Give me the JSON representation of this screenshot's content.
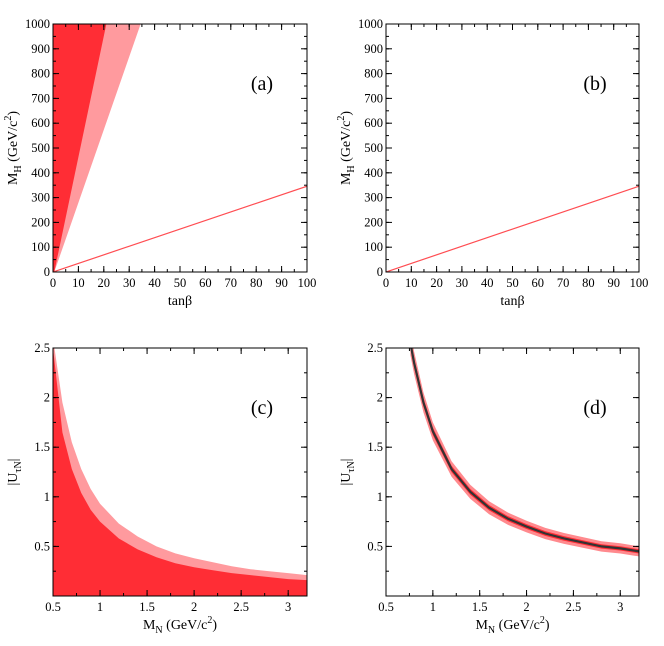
{
  "chart_data": [
    {
      "panel": "(a)",
      "type": "area",
      "xlabel": "tanβ",
      "ylabel": {
        "main": "M",
        "sub": "H",
        "unit_pre": " (GeV/c",
        "unit_sup": "2",
        "unit_post": ")"
      },
      "xlim": [
        0,
        100
      ],
      "ylim": [
        0,
        1000
      ],
      "xticks": [
        0,
        10,
        20,
        30,
        40,
        50,
        60,
        70,
        80,
        90,
        100
      ],
      "yticks": [
        0,
        100,
        200,
        300,
        400,
        500,
        600,
        700,
        800,
        900,
        1000
      ],
      "regions": [
        {
          "color": "#ff9a9e",
          "points": [
            [
              0,
              0
            ],
            [
              0,
              1000
            ],
            [
              34.5,
              1000
            ],
            [
              0.5,
              0
            ]
          ]
        },
        {
          "color": "#ff2d35",
          "points": [
            [
              0,
              0
            ],
            [
              0,
              1000
            ],
            [
              21,
              1000
            ],
            [
              0.5,
              0
            ]
          ]
        }
      ],
      "line": {
        "color": "#ff4d52",
        "points": [
          [
            0,
            0
          ],
          [
            100,
            346
          ]
        ]
      }
    },
    {
      "panel": "(b)",
      "type": "line",
      "xlabel": "tanβ",
      "ylabel": {
        "main": "M",
        "sub": "H",
        "unit_pre": " (GeV/c",
        "unit_sup": "2",
        "unit_post": ")"
      },
      "xlim": [
        0,
        100
      ],
      "ylim": [
        0,
        1000
      ],
      "xticks": [
        0,
        10,
        20,
        30,
        40,
        50,
        60,
        70,
        80,
        90,
        100
      ],
      "yticks": [
        0,
        100,
        200,
        300,
        400,
        500,
        600,
        700,
        800,
        900,
        1000
      ],
      "regions": [],
      "line": {
        "color": "#ff4d52",
        "points": [
          [
            0,
            0
          ],
          [
            100,
            346
          ]
        ]
      }
    },
    {
      "panel": "(c)",
      "type": "area",
      "xlabel": {
        "main": "M",
        "sub": "N",
        "unit_pre": " (GeV/c",
        "unit_sup": "2",
        "unit_post": ")"
      },
      "ylabel": {
        "main": "|U",
        "sub": "τN",
        "unit_pre": "|",
        "unit_sup": "",
        "unit_post": ""
      },
      "xlim": [
        0.5,
        3.2
      ],
      "ylim": [
        0,
        2.5
      ],
      "xticks": [
        0.5,
        1,
        1.5,
        2,
        2.5,
        3
      ],
      "yticks": [
        0.5,
        1,
        1.5,
        2,
        2.5
      ],
      "yticks_labels": [
        "0.5",
        "1",
        "1.5",
        "2",
        "2.5"
      ],
      "xticks_labels": [
        "0.5",
        "1",
        "1.5",
        "2",
        "2.5",
        "3"
      ],
      "curves": {
        "upper_light": {
          "color": "#ff9a9e",
          "x": [
            0.5,
            0.6,
            0.7,
            0.8,
            0.9,
            1.0,
            1.2,
            1.4,
            1.6,
            1.8,
            2.0,
            2.2,
            2.4,
            2.6,
            2.8,
            3.0,
            3.2
          ],
          "y": [
            2.6,
            1.95,
            1.55,
            1.28,
            1.08,
            0.93,
            0.73,
            0.6,
            0.5,
            0.43,
            0.38,
            0.34,
            0.3,
            0.27,
            0.25,
            0.23,
            0.21
          ]
        },
        "upper_dark": {
          "color": "#ff2d35",
          "x": [
            0.5,
            0.6,
            0.7,
            0.8,
            0.9,
            1.0,
            1.2,
            1.4,
            1.6,
            1.8,
            2.0,
            2.2,
            2.4,
            2.6,
            2.8,
            3.0,
            3.2
          ],
          "y": [
            2.5,
            1.65,
            1.28,
            1.04,
            0.87,
            0.75,
            0.58,
            0.47,
            0.39,
            0.33,
            0.29,
            0.26,
            0.23,
            0.21,
            0.19,
            0.17,
            0.16
          ]
        }
      }
    },
    {
      "panel": "(d)",
      "type": "line",
      "xlabel": {
        "main": "M",
        "sub": "N",
        "unit_pre": " (GeV/c",
        "unit_sup": "2",
        "unit_post": ")"
      },
      "ylabel": {
        "main": "|U",
        "sub": "τN",
        "unit_pre": "|",
        "unit_sup": "",
        "unit_post": ""
      },
      "xlim": [
        0.5,
        3.2
      ],
      "ylim": [
        0,
        2.5
      ],
      "xticks": [
        0.5,
        1,
        1.5,
        2,
        2.5,
        3
      ],
      "yticks": [
        0.5,
        1,
        1.5,
        2,
        2.5
      ],
      "yticks_labels": [
        "0.5",
        "1",
        "1.5",
        "2",
        "2.5"
      ],
      "xticks_labels": [
        "0.5",
        "1",
        "1.5",
        "2",
        "2.5",
        "3"
      ],
      "band": {
        "outer_color": "#ff8a8e",
        "inner_color": "#ff2d35",
        "center_color": "#333333",
        "x": [
          0.76,
          0.8,
          0.9,
          1.0,
          1.2,
          1.4,
          1.6,
          1.8,
          2.0,
          2.2,
          2.4,
          2.6,
          2.8,
          3.0,
          3.2
        ],
        "center": [
          2.55,
          2.35,
          1.95,
          1.66,
          1.28,
          1.05,
          0.89,
          0.78,
          0.7,
          0.63,
          0.58,
          0.54,
          0.5,
          0.48,
          0.45
        ],
        "outer_width": 0.06,
        "inner_width": 0.025
      }
    }
  ],
  "panels_ylabel_tick_formats": {
    "a": [
      "0",
      "100",
      "200",
      "300",
      "400",
      "500",
      "600",
      "700",
      "800",
      "900",
      "1000"
    ],
    "c": [
      "0.5",
      "1",
      "1.5",
      "2",
      "2.5"
    ]
  }
}
